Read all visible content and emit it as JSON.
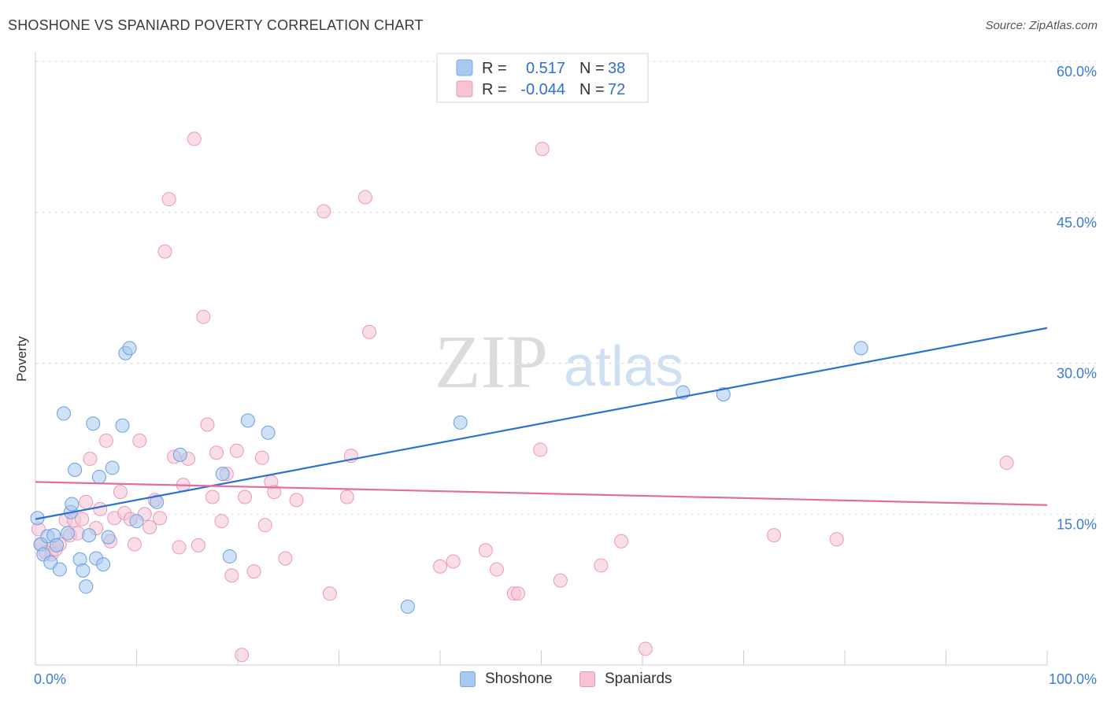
{
  "header": {
    "title": "SHOSHONE VS SPANIARD POVERTY CORRELATION CHART",
    "source": "Source: ZipAtlas.com"
  },
  "watermark": {
    "zip": "ZIP",
    "atlas": "atlas"
  },
  "legend_box": {
    "rows": [
      {
        "r_label": "R =",
        "r_value": "0.517",
        "n_label": "N =",
        "n_value": "38",
        "color": "#a8c8f0"
      },
      {
        "r_label": "R =",
        "r_value": "-0.044",
        "n_label": "N =",
        "n_value": "72",
        "color": "#f5b8cc"
      }
    ]
  },
  "bottom_legend": {
    "items": [
      {
        "label": "Shoshone",
        "color": "#a8c8f0",
        "border": "#7aaae6"
      },
      {
        "label": "Spaniards",
        "color": "#f5c3d3",
        "border": "#ec98b4"
      }
    ]
  },
  "chart_data": {
    "type": "scatter",
    "title": "SHOSHONE VS SPANIARD POVERTY CORRELATION CHART",
    "xlabel": "",
    "ylabel": "Poverty",
    "xlim": [
      0,
      100
    ],
    "ylim": [
      0,
      60
    ],
    "x_ticks": [
      0,
      100
    ],
    "x_tick_labels": [
      "0.0%",
      "100.0%"
    ],
    "y_ticks": [
      15,
      30,
      45,
      60
    ],
    "y_tick_labels": [
      "15.0%",
      "30.0%",
      "45.0%",
      "60.0%"
    ],
    "grid": true,
    "legend_position": "top-center",
    "series": [
      {
        "name": "Shoshone",
        "color": "#a8c8f0",
        "stroke": "#6a9fe0",
        "line_color": "#2a72d0",
        "trend": {
          "x": [
            0,
            100
          ],
          "y": [
            14.5,
            33.5
          ]
        },
        "points": [
          [
            0.2,
            14.6
          ],
          [
            0.5,
            12.0
          ],
          [
            0.8,
            11.0
          ],
          [
            1.2,
            12.8
          ],
          [
            1.5,
            10.2
          ],
          [
            1.8,
            12.9
          ],
          [
            2.1,
            11.9
          ],
          [
            2.4,
            9.5
          ],
          [
            2.8,
            25.0
          ],
          [
            3.2,
            13.1
          ],
          [
            3.5,
            15.2
          ],
          [
            3.6,
            16.0
          ],
          [
            3.9,
            19.4
          ],
          [
            4.4,
            10.5
          ],
          [
            4.7,
            9.4
          ],
          [
            5.0,
            7.8
          ],
          [
            5.3,
            12.9
          ],
          [
            5.7,
            24.0
          ],
          [
            6.0,
            10.6
          ],
          [
            6.3,
            18.7
          ],
          [
            6.7,
            10.0
          ],
          [
            7.2,
            12.7
          ],
          [
            7.6,
            19.6
          ],
          [
            8.6,
            23.8
          ],
          [
            8.9,
            31.0
          ],
          [
            9.3,
            31.5
          ],
          [
            10.0,
            14.3
          ],
          [
            12.0,
            16.2
          ],
          [
            14.3,
            20.9
          ],
          [
            18.5,
            19.0
          ],
          [
            19.2,
            10.8
          ],
          [
            21.0,
            24.3
          ],
          [
            23.0,
            23.1
          ],
          [
            36.8,
            5.8
          ],
          [
            42.0,
            24.1
          ],
          [
            64.0,
            27.1
          ],
          [
            68.0,
            26.9
          ],
          [
            81.6,
            31.5
          ]
        ]
      },
      {
        "name": "Spaniards",
        "color": "#f5c3d3",
        "stroke": "#ec98b4",
        "line_color": "#e46e9a",
        "trend": {
          "x": [
            0,
            100
          ],
          "y": [
            18.2,
            15.9
          ]
        },
        "points": [
          [
            0.3,
            13.5
          ],
          [
            0.6,
            12.0
          ],
          [
            1.0,
            11.2
          ],
          [
            1.6,
            11.0
          ],
          [
            2.0,
            11.5
          ],
          [
            2.4,
            12.0
          ],
          [
            3.0,
            14.4
          ],
          [
            3.4,
            12.9
          ],
          [
            3.8,
            14.4
          ],
          [
            4.2,
            13.1
          ],
          [
            4.6,
            14.5
          ],
          [
            5.0,
            16.2
          ],
          [
            5.4,
            20.5
          ],
          [
            6.0,
            13.6
          ],
          [
            6.4,
            15.5
          ],
          [
            7.0,
            22.3
          ],
          [
            7.4,
            12.3
          ],
          [
            7.8,
            14.6
          ],
          [
            8.4,
            17.2
          ],
          [
            8.8,
            15.1
          ],
          [
            9.4,
            14.5
          ],
          [
            9.8,
            12.0
          ],
          [
            10.3,
            22.3
          ],
          [
            10.8,
            15.0
          ],
          [
            11.3,
            13.7
          ],
          [
            11.8,
            16.4
          ],
          [
            12.3,
            14.6
          ],
          [
            12.8,
            41.1
          ],
          [
            13.2,
            46.3
          ],
          [
            13.7,
            20.7
          ],
          [
            14.2,
            11.7
          ],
          [
            14.6,
            17.9
          ],
          [
            15.1,
            20.5
          ],
          [
            15.7,
            52.3
          ],
          [
            16.1,
            11.9
          ],
          [
            16.6,
            34.6
          ],
          [
            17.0,
            23.9
          ],
          [
            17.5,
            16.7
          ],
          [
            17.9,
            21.1
          ],
          [
            18.4,
            14.3
          ],
          [
            18.9,
            19.0
          ],
          [
            19.4,
            8.9
          ],
          [
            19.9,
            21.3
          ],
          [
            20.4,
            1.0
          ],
          [
            20.7,
            16.7
          ],
          [
            21.6,
            9.3
          ],
          [
            22.4,
            20.6
          ],
          [
            22.7,
            13.9
          ],
          [
            23.3,
            18.2
          ],
          [
            23.6,
            17.2
          ],
          [
            24.7,
            10.6
          ],
          [
            25.8,
            16.4
          ],
          [
            28.5,
            45.1
          ],
          [
            29.1,
            7.1
          ],
          [
            30.8,
            16.7
          ],
          [
            31.2,
            20.8
          ],
          [
            32.6,
            46.5
          ],
          [
            33.0,
            33.1
          ],
          [
            40.0,
            9.8
          ],
          [
            41.3,
            10.3
          ],
          [
            44.5,
            11.4
          ],
          [
            45.6,
            9.5
          ],
          [
            47.3,
            7.1
          ],
          [
            47.7,
            7.1
          ],
          [
            49.9,
            21.4
          ],
          [
            50.1,
            51.3
          ],
          [
            51.9,
            8.4
          ],
          [
            55.9,
            9.9
          ],
          [
            57.9,
            12.3
          ],
          [
            60.3,
            1.6
          ],
          [
            73.0,
            12.9
          ],
          [
            79.2,
            12.5
          ],
          [
            96.0,
            20.1
          ]
        ]
      }
    ]
  }
}
